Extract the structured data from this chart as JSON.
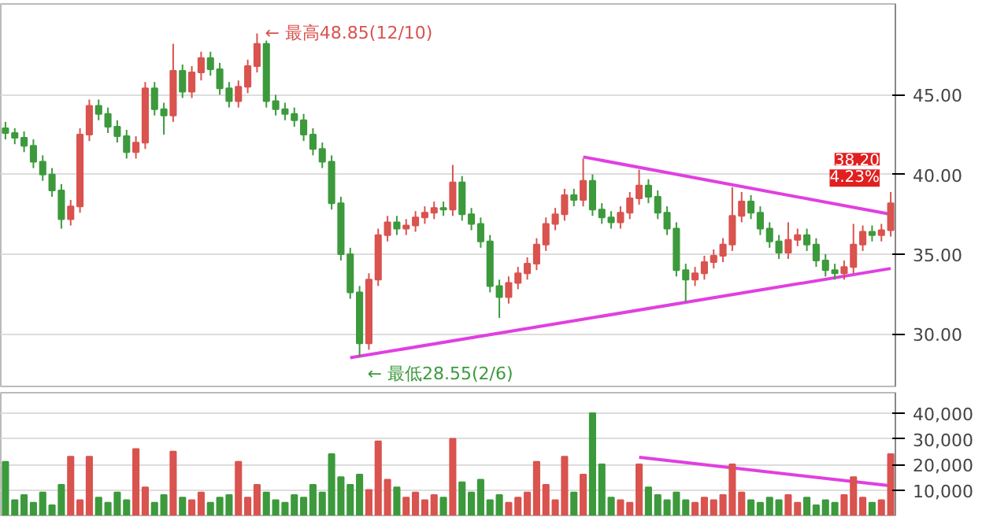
{
  "chart_data": [
    {
      "type": "candlestick",
      "categories": [
        null,
        null,
        null,
        null,
        null,
        null,
        null,
        null,
        null,
        null,
        null,
        null,
        null,
        null,
        null,
        null,
        null,
        null,
        null,
        null,
        null,
        null,
        null,
        null,
        null,
        null,
        null,
        null,
        null,
        null,
        null,
        null,
        null,
        null,
        null,
        null,
        null,
        null,
        null,
        null,
        null,
        null,
        null,
        null,
        null,
        null,
        null,
        null,
        null,
        null,
        null,
        null,
        null,
        null,
        null,
        null,
        null,
        null,
        null,
        null,
        null,
        null,
        null,
        null,
        null,
        null,
        null,
        null,
        null,
        null,
        null,
        null,
        null,
        null,
        null,
        null,
        null,
        null,
        null,
        null,
        null,
        null,
        null,
        null,
        null,
        null,
        null,
        null,
        null,
        null,
        null,
        null,
        null,
        null,
        null,
        null
      ],
      "ohlc": [
        [
          42.9,
          43.3,
          42.2,
          42.6
        ],
        [
          42.6,
          42.9,
          41.9,
          42.3
        ],
        [
          42.3,
          42.7,
          41.4,
          41.8
        ],
        [
          41.8,
          42.2,
          40.4,
          40.8
        ],
        [
          40.8,
          41.2,
          39.6,
          40.0
        ],
        [
          40.0,
          40.4,
          38.6,
          39.0
        ],
        [
          39.0,
          39.4,
          36.6,
          37.2
        ],
        [
          37.2,
          38.4,
          36.8,
          38.0
        ],
        [
          38.0,
          42.9,
          37.6,
          42.5
        ],
        [
          42.5,
          44.7,
          42.1,
          44.3
        ],
        [
          44.3,
          44.7,
          43.4,
          43.8
        ],
        [
          43.8,
          44.2,
          42.6,
          43.0
        ],
        [
          43.0,
          43.4,
          42.0,
          42.4
        ],
        [
          42.4,
          42.8,
          41.0,
          41.4
        ],
        [
          41.4,
          42.4,
          41.0,
          42.0
        ],
        [
          42.0,
          45.8,
          41.6,
          45.4
        ],
        [
          45.4,
          45.8,
          43.7,
          44.1
        ],
        [
          44.1,
          44.5,
          42.5,
          43.7
        ],
        [
          43.7,
          48.2,
          43.3,
          46.5
        ],
        [
          46.5,
          46.9,
          44.8,
          45.2
        ],
        [
          45.2,
          46.8,
          44.8,
          46.4
        ],
        [
          46.4,
          47.7,
          45.9,
          47.3
        ],
        [
          47.3,
          47.7,
          46.2,
          46.6
        ],
        [
          46.6,
          47.0,
          45.0,
          45.4
        ],
        [
          45.4,
          45.8,
          44.2,
          44.6
        ],
        [
          44.6,
          45.9,
          44.2,
          45.5
        ],
        [
          45.5,
          47.2,
          45.1,
          46.8
        ],
        [
          46.8,
          48.85,
          46.4,
          48.2
        ],
        [
          48.2,
          48.4,
          44.2,
          44.6
        ],
        [
          44.6,
          45.0,
          43.7,
          44.1
        ],
        [
          44.1,
          44.5,
          43.4,
          43.8
        ],
        [
          43.8,
          44.2,
          43.0,
          43.4
        ],
        [
          43.4,
          43.8,
          42.1,
          42.5
        ],
        [
          42.5,
          42.9,
          41.2,
          41.6
        ],
        [
          41.6,
          42.0,
          40.4,
          40.8
        ],
        [
          40.8,
          41.2,
          37.8,
          38.2
        ],
        [
          38.2,
          38.6,
          34.6,
          35.0
        ],
        [
          35.0,
          35.4,
          32.2,
          32.6
        ],
        [
          32.6,
          33.0,
          28.55,
          29.4
        ],
        [
          29.4,
          33.8,
          29.0,
          33.4
        ],
        [
          33.4,
          36.6,
          33.0,
          36.2
        ],
        [
          36.2,
          37.4,
          35.8,
          37.0
        ],
        [
          37.0,
          37.4,
          36.2,
          36.6
        ],
        [
          36.6,
          37.2,
          36.2,
          36.8
        ],
        [
          36.8,
          37.7,
          36.4,
          37.3
        ],
        [
          37.3,
          38.0,
          36.9,
          37.6
        ],
        [
          37.6,
          38.3,
          37.2,
          37.9
        ],
        [
          37.9,
          38.3,
          37.4,
          37.8
        ],
        [
          37.8,
          40.6,
          37.4,
          39.5
        ],
        [
          39.5,
          39.9,
          37.1,
          37.5
        ],
        [
          37.5,
          37.9,
          36.5,
          36.9
        ],
        [
          36.9,
          37.3,
          35.4,
          35.8
        ],
        [
          35.8,
          36.2,
          32.6,
          33.0
        ],
        [
          33.0,
          33.4,
          31.0,
          32.3
        ],
        [
          32.3,
          33.6,
          31.9,
          33.2
        ],
        [
          33.2,
          34.2,
          32.8,
          33.8
        ],
        [
          33.8,
          34.8,
          33.4,
          34.4
        ],
        [
          34.4,
          36.0,
          34.0,
          35.6
        ],
        [
          35.6,
          37.3,
          35.2,
          36.9
        ],
        [
          36.9,
          37.9,
          36.5,
          37.5
        ],
        [
          37.5,
          39.1,
          37.1,
          38.7
        ],
        [
          38.7,
          39.1,
          38.0,
          38.4
        ],
        [
          38.4,
          41.0,
          38.0,
          39.6
        ],
        [
          39.6,
          40.0,
          37.4,
          37.8
        ],
        [
          37.8,
          38.2,
          36.9,
          37.3
        ],
        [
          37.3,
          37.7,
          36.6,
          37.0
        ],
        [
          37.0,
          38.0,
          36.6,
          37.6
        ],
        [
          37.6,
          38.9,
          37.2,
          38.5
        ],
        [
          38.5,
          40.3,
          38.1,
          39.3
        ],
        [
          39.3,
          39.7,
          38.2,
          38.6
        ],
        [
          38.6,
          39.0,
          37.2,
          37.6
        ],
        [
          37.6,
          38.0,
          36.2,
          36.6
        ],
        [
          36.6,
          37.0,
          33.6,
          34.0
        ],
        [
          34.0,
          34.4,
          32.0,
          33.4
        ],
        [
          33.4,
          34.2,
          33.0,
          33.8
        ],
        [
          33.8,
          34.9,
          33.4,
          34.5
        ],
        [
          34.5,
          35.3,
          34.1,
          34.9
        ],
        [
          34.9,
          36.0,
          34.5,
          35.6
        ],
        [
          35.6,
          39.2,
          35.2,
          37.4
        ],
        [
          37.4,
          38.9,
          37.0,
          38.3
        ],
        [
          38.3,
          38.7,
          37.2,
          37.6
        ],
        [
          37.6,
          38.0,
          36.2,
          36.6
        ],
        [
          36.6,
          37.0,
          35.4,
          35.8
        ],
        [
          35.8,
          36.2,
          34.7,
          35.1
        ],
        [
          35.1,
          37.0,
          34.7,
          35.9
        ],
        [
          35.9,
          36.6,
          35.5,
          36.2
        ],
        [
          36.2,
          36.6,
          35.2,
          35.6
        ],
        [
          35.6,
          36.0,
          34.2,
          34.6
        ],
        [
          34.6,
          35.0,
          33.6,
          34.0
        ],
        [
          34.0,
          34.4,
          33.4,
          33.8
        ],
        [
          33.8,
          34.6,
          33.4,
          34.2
        ],
        [
          34.2,
          36.9,
          33.8,
          35.6
        ],
        [
          35.6,
          36.8,
          35.2,
          36.4
        ],
        [
          36.4,
          36.8,
          35.8,
          36.2
        ],
        [
          36.2,
          36.9,
          35.8,
          36.5
        ],
        [
          36.5,
          38.9,
          36.1,
          38.2
        ]
      ],
      "series": [
        {
          "type": "line",
          "color": "#e040e0",
          "values": [
            null,
            null,
            null,
            null,
            null,
            null,
            null,
            null,
            null,
            null,
            null,
            null,
            null,
            null,
            null,
            null,
            null,
            null,
            null,
            null,
            null,
            null,
            null,
            null,
            null,
            null,
            null,
            null,
            null,
            null,
            null,
            null,
            null,
            null,
            null,
            null,
            null,
            null,
            null,
            null,
            null,
            null,
            null,
            null,
            null,
            null,
            null,
            null,
            null,
            null,
            null,
            null,
            null,
            null,
            null,
            null,
            null,
            null,
            null,
            null,
            null,
            null,
            41.1,
            null,
            null,
            null,
            null,
            null,
            null,
            null,
            null,
            null,
            null,
            null,
            null,
            null,
            null,
            null,
            null,
            null,
            null,
            null,
            null,
            null,
            null,
            null,
            null,
            null,
            null,
            null,
            null,
            null,
            null,
            null,
            null,
            37.5
          ]
        },
        {
          "type": "line",
          "color": "#e040e0",
          "values": [
            null,
            null,
            null,
            null,
            null,
            null,
            null,
            null,
            null,
            null,
            null,
            null,
            null,
            null,
            null,
            null,
            null,
            null,
            null,
            null,
            null,
            null,
            null,
            null,
            null,
            null,
            null,
            null,
            null,
            null,
            null,
            null,
            null,
            null,
            null,
            null,
            null,
            28.5,
            null,
            null,
            null,
            null,
            null,
            null,
            null,
            null,
            null,
            null,
            null,
            null,
            null,
            null,
            null,
            null,
            null,
            null,
            null,
            null,
            null,
            null,
            null,
            null,
            null,
            null,
            null,
            null,
            null,
            null,
            null,
            null,
            null,
            null,
            null,
            null,
            null,
            null,
            null,
            null,
            null,
            null,
            null,
            null,
            null,
            null,
            null,
            null,
            null,
            null,
            null,
            null,
            null,
            null,
            null,
            null,
            null,
            34.1
          ]
        }
      ],
      "ylim": [
        26.7,
        50.7
      ],
      "yticks": [
        {
          "value": 30,
          "label": "30.00"
        },
        {
          "value": 35,
          "label": "35.00"
        },
        {
          "value": 40,
          "label": "40.00"
        },
        {
          "value": 45,
          "label": "45.00"
        }
      ],
      "grid": "y",
      "tick_labels": "y",
      "annotations": [
        "← 最高48.85(12/10)",
        "← 最低28.55(2/6)",
        "38.20\n4.23%"
      ]
    },
    {
      "type": "bar",
      "categories": [
        null,
        null,
        null,
        null,
        null,
        null,
        null,
        null,
        null,
        null,
        null,
        null,
        null,
        null,
        null,
        null,
        null,
        null,
        null,
        null,
        null,
        null,
        null,
        null,
        null,
        null,
        null,
        null,
        null,
        null,
        null,
        null,
        null,
        null,
        null,
        null,
        null,
        null,
        null,
        null,
        null,
        null,
        null,
        null,
        null,
        null,
        null,
        null,
        null,
        null,
        null,
        null,
        null,
        null,
        null,
        null,
        null,
        null,
        null,
        null,
        null,
        null,
        null,
        null,
        null,
        null,
        null,
        null,
        null,
        null,
        null,
        null,
        null,
        null,
        null,
        null,
        null,
        null,
        null,
        null,
        null,
        null,
        null,
        null,
        null,
        null,
        null,
        null,
        null,
        null,
        null,
        null,
        null,
        null,
        null,
        null
      ],
      "colors": [
        "#3c9a3c",
        "#3c9a3c",
        "#3c9a3c",
        "#3c9a3c",
        "#3c9a3c",
        "#3c9a3c",
        "#3c9a3c",
        "#d9534f",
        "#d9534f",
        "#d9534f",
        "#3c9a3c",
        "#3c9a3c",
        "#3c9a3c",
        "#3c9a3c",
        "#d9534f",
        "#d9534f",
        "#3c9a3c",
        "#3c9a3c",
        "#d9534f",
        "#3c9a3c",
        "#d9534f",
        "#d9534f",
        "#3c9a3c",
        "#3c9a3c",
        "#3c9a3c",
        "#d9534f",
        "#d9534f",
        "#d9534f",
        "#3c9a3c",
        "#3c9a3c",
        "#3c9a3c",
        "#3c9a3c",
        "#3c9a3c",
        "#3c9a3c",
        "#3c9a3c",
        "#3c9a3c",
        "#3c9a3c",
        "#3c9a3c",
        "#3c9a3c",
        "#d9534f",
        "#d9534f",
        "#d9534f",
        "#3c9a3c",
        "#d9534f",
        "#d9534f",
        "#d9534f",
        "#d9534f",
        "#3c9a3c",
        "#d9534f",
        "#3c9a3c",
        "#3c9a3c",
        "#3c9a3c",
        "#3c9a3c",
        "#3c9a3c",
        "#d9534f",
        "#d9534f",
        "#d9534f",
        "#d9534f",
        "#d9534f",
        "#d9534f",
        "#d9534f",
        "#3c9a3c",
        "#d9534f",
        "#3c9a3c",
        "#3c9a3c",
        "#3c9a3c",
        "#d9534f",
        "#d9534f",
        "#d9534f",
        "#3c9a3c",
        "#3c9a3c",
        "#3c9a3c",
        "#3c9a3c",
        "#3c9a3c",
        "#d9534f",
        "#d9534f",
        "#d9534f",
        "#d9534f",
        "#d9534f",
        "#d9534f",
        "#3c9a3c",
        "#3c9a3c",
        "#3c9a3c",
        "#3c9a3c",
        "#d9534f",
        "#d9534f",
        "#3c9a3c",
        "#3c9a3c",
        "#3c9a3c",
        "#3c9a3c",
        "#d9534f",
        "#d9534f",
        "#d9534f",
        "#3c9a3c",
        "#d9534f",
        "#d9534f"
      ],
      "values": [
        21000,
        6000,
        8000,
        5000,
        9000,
        4000,
        12000,
        23000,
        6000,
        23000,
        7000,
        5000,
        9000,
        6000,
        26000,
        11000,
        5000,
        8000,
        25000,
        7000,
        6000,
        9000,
        5000,
        7000,
        8000,
        21000,
        7000,
        12000,
        9000,
        6000,
        5000,
        8000,
        7000,
        12000,
        9000,
        24000,
        15000,
        12000,
        16000,
        10000,
        29000,
        14000,
        11000,
        7000,
        9000,
        6000,
        8000,
        7000,
        30000,
        13000,
        9000,
        14000,
        6000,
        8000,
        5000,
        7000,
        9000,
        21000,
        12000,
        6000,
        23000,
        9000,
        16000,
        40000,
        20000,
        7000,
        6000,
        5000,
        20000,
        11000,
        8000,
        6000,
        9000,
        6000,
        5000,
        7000,
        6000,
        8000,
        20000,
        9000,
        6000,
        5000,
        7000,
        6000,
        8000,
        5000,
        7000,
        4000,
        6000,
        5000,
        8000,
        15000,
        7000,
        5000,
        6000,
        24000
      ],
      "series": [
        {
          "type": "line",
          "color": "#e040e0",
          "values": [
            null,
            null,
            null,
            null,
            null,
            null,
            null,
            null,
            null,
            null,
            null,
            null,
            null,
            null,
            null,
            null,
            null,
            null,
            null,
            null,
            null,
            null,
            null,
            null,
            null,
            null,
            null,
            null,
            null,
            null,
            null,
            null,
            null,
            null,
            null,
            null,
            null,
            null,
            null,
            null,
            null,
            null,
            null,
            null,
            null,
            null,
            null,
            null,
            null,
            null,
            null,
            null,
            null,
            null,
            null,
            null,
            null,
            null,
            null,
            null,
            null,
            null,
            null,
            null,
            null,
            null,
            null,
            null,
            22800,
            null,
            null,
            null,
            null,
            null,
            null,
            null,
            null,
            null,
            null,
            null,
            null,
            null,
            null,
            null,
            null,
            null,
            null,
            null,
            null,
            null,
            null,
            null,
            null,
            null,
            null,
            11600
          ]
        }
      ],
      "ylim": [
        0,
        48000
      ],
      "yticks": [
        {
          "value": 10000,
          "label": "10,000"
        },
        {
          "value": 20000,
          "label": "20,000"
        },
        {
          "value": 30000,
          "label": "30,000"
        },
        {
          "value": 40000,
          "label": "40,000"
        }
      ],
      "grid": "y",
      "tick_labels": "y"
    }
  ]
}
